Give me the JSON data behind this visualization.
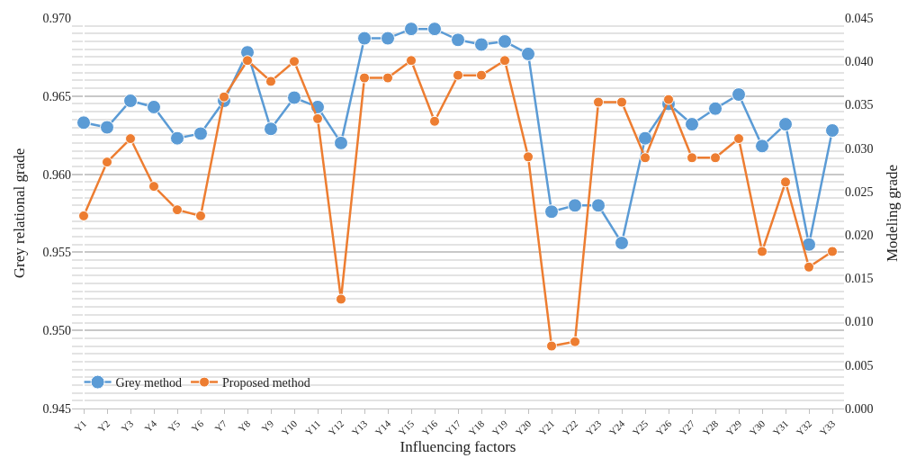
{
  "chart_data": {
    "type": "line",
    "xlabel": "Influencing factors",
    "ylabel": "Grey relational grade",
    "y2label": "Modeling grade",
    "categories": [
      "Y1",
      "Y2",
      "Y3",
      "Y4",
      "Y5",
      "Y6",
      "Y7",
      "Y8",
      "Y9",
      "Y10",
      "Y11",
      "Y12",
      "Y13",
      "Y14",
      "Y15",
      "Y16",
      "Y17",
      "Y18",
      "Y19",
      "Y20",
      "Y21",
      "Y22",
      "Y23",
      "Y24",
      "Y25",
      "Y26",
      "Y27",
      "Y28",
      "Y29",
      "Y30",
      "Y31",
      "Y32",
      "Y33"
    ],
    "series": [
      {
        "name": "Grey method",
        "color": "#5b9bd5",
        "values": [
          0.9633,
          0.963,
          0.9647,
          0.9643,
          0.9623,
          0.9626,
          0.9647,
          0.9678,
          0.9629,
          0.9649,
          0.9643,
          0.962,
          0.9687,
          0.9687,
          0.9693,
          0.9693,
          0.9686,
          0.9683,
          0.9685,
          0.9677,
          0.9576,
          0.958,
          0.958,
          0.9556,
          0.9623,
          0.9645,
          0.9632,
          0.9642,
          0.9651,
          0.9618,
          0.9632,
          0.9555,
          0.9628
        ]
      },
      {
        "name": "Proposed method",
        "color": "#ed7d31",
        "axis": "y2",
        "values": [
          0.0222,
          0.0284,
          0.0311,
          0.0256,
          0.0229,
          0.0222,
          0.0359,
          0.0401,
          0.0377,
          0.04,
          0.0334,
          0.0126,
          0.0381,
          0.0381,
          0.0401,
          0.0331,
          0.0384,
          0.0384,
          0.0401,
          0.029,
          0.0072,
          0.0077,
          0.0353,
          0.0353,
          0.0289,
          0.0356,
          0.0289,
          0.0289,
          0.0311,
          0.0181,
          0.0261,
          0.0163,
          0.0181
        ]
      }
    ],
    "ylim": [
      0.945,
      0.97
    ],
    "yticks": [
      {
        "value": 0.945,
        "label": "0.945"
      },
      {
        "value": 0.95,
        "label": "0.950"
      },
      {
        "value": 0.955,
        "label": "0.955"
      },
      {
        "value": 0.96,
        "label": "0.960"
      },
      {
        "value": 0.965,
        "label": "0.965"
      },
      {
        "value": 0.97,
        "label": "0.970"
      }
    ],
    "y2lim": [
      0,
      0.045
    ],
    "y2ticks": [
      {
        "value": 0,
        "label": "0.000"
      },
      {
        "value": 0.005,
        "label": "0.005"
      },
      {
        "value": 0.01,
        "label": "0.010"
      },
      {
        "value": 0.015,
        "label": "0.015"
      },
      {
        "value": 0.02,
        "label": "0.020"
      },
      {
        "value": 0.025,
        "label": "0.025"
      },
      {
        "value": 0.03,
        "label": "0.030"
      },
      {
        "value": 0.035,
        "label": "0.035"
      },
      {
        "value": 0.04,
        "label": "0.040"
      },
      {
        "value": 0.045,
        "label": "0.045"
      }
    ],
    "grid": "y",
    "legend": "bottom left",
    "marker": "circle",
    "line_style": "solid"
  }
}
